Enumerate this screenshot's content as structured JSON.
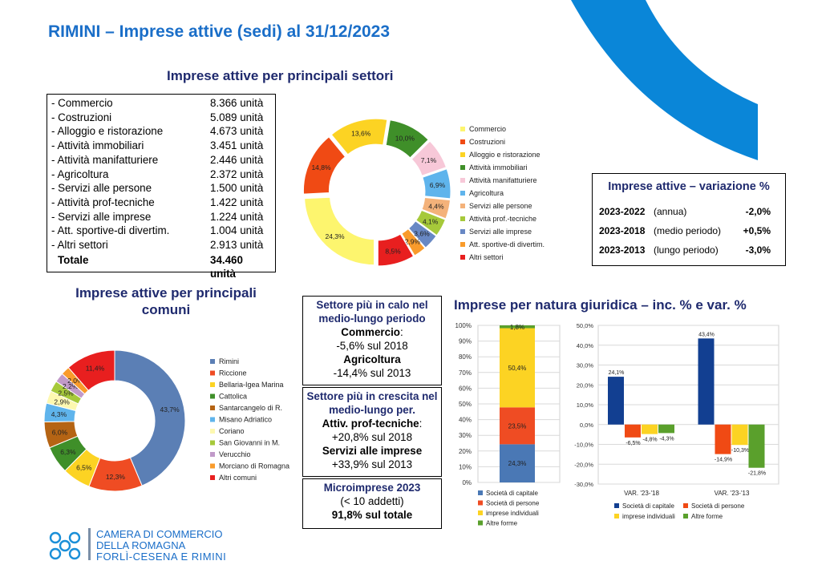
{
  "page_title": "RIMINI – Imprese attive (sedi) al 31/12/2023",
  "sectors": {
    "title": "Imprese attive per principali settori",
    "rows": [
      {
        "name": "- Commercio",
        "value": "8.366 unità"
      },
      {
        "name": "- Costruzioni",
        "value": "5.089 unità"
      },
      {
        "name": "- Alloggio e ristorazione",
        "value": "4.673 unità"
      },
      {
        "name": "- Attività immobiliari",
        "value": "3.451 unità"
      },
      {
        "name": "- Attività manifatturiere",
        "value": "2.446 unità"
      },
      {
        "name": "- Agricoltura",
        "value": "2.372 unità"
      },
      {
        "name": "- Servizi alle persone",
        "value": "1.500 unità"
      },
      {
        "name": "- Attività prof-tecniche",
        "value": "1.422 unità"
      },
      {
        "name": "- Servizi alle imprese",
        "value": "1.224 unità"
      },
      {
        "name": "- Att. sportive-di divertim.",
        "value": "1.004 unità"
      },
      {
        "name": "- Altri settori",
        "value": "2.913 unità"
      }
    ],
    "total_label": "Totale",
    "total_value": "34.460 unità"
  },
  "variation": {
    "title": "Imprese attive – variazione %",
    "rows": [
      {
        "period": "2023-2022",
        "desc": "(annua)",
        "value": "-2,0%"
      },
      {
        "period": "2023-2018",
        "desc": "(medio periodo)",
        "value": "+0,5%"
      },
      {
        "period": "2023-2013",
        "desc": "(lungo periodo)",
        "value": "-3,0%"
      }
    ]
  },
  "comuni_title": "Imprese attive per principali comuni",
  "box_calo": {
    "title": "Settore più in calo nel medio-lungo periodo",
    "s1_name": "Commercio",
    "s1_suffix": ":",
    "s1_value": "-5,6% sul 2018",
    "s2_name": "Agricoltura",
    "s2_value": "-14,4% sul 2013"
  },
  "box_crescita": {
    "title": "Settore più in crescita nel medio-lungo per.",
    "s1_name": "Attiv. prof-tecniche",
    "s1_suffix": ":",
    "s1_value": "+20,8% sul 2018",
    "s2_name": "Servizi alle imprese",
    "s2_value": "+33,9% sul 2013"
  },
  "box_micro": {
    "title": "Microimprese 2023",
    "sub": "(< 10 addetti)",
    "value": "91,8% sul totale"
  },
  "natura_title": "Imprese per natura giuridica – inc. % e var. %",
  "logo": {
    "line1": "CAMERA DI COMMERCIO",
    "line2": "DELLA ROMAGNA",
    "line3": "FORLÌ-CESENA E RIMINI"
  },
  "chart_data": [
    {
      "type": "pie",
      "variant": "donut",
      "labels": [
        "Commercio",
        "Costruzioni",
        "Alloggio e ristorazione",
        "Attività immobiliari",
        "Attività manifatturiere",
        "Agricoltura",
        "Servizi alle persone",
        "Attività prof.-tecniche",
        "Servizi alle imprese",
        "Att. sportive-di divertim.",
        "Altri settori"
      ],
      "values": [
        24.3,
        14.8,
        13.6,
        10.0,
        7.1,
        6.9,
        4.4,
        4.1,
        3.6,
        2.9,
        8.5
      ],
      "value_labels": [
        "24,3%",
        "14,8%",
        "13,6%",
        "10,0%",
        "7,1%",
        "6,9%",
        "4,4%",
        "4,1%",
        "3,6%",
        "2,9%",
        "8,5%"
      ],
      "colors": [
        "#fdf56e",
        "#f04a14",
        "#fcd323",
        "#3f8f29",
        "#f7c8d8",
        "#5fb4ec",
        "#f4b27a",
        "#a6c93a",
        "#6888c4",
        "#f99b2b",
        "#e81f1f"
      ],
      "legend_position": "right"
    },
    {
      "type": "pie",
      "variant": "donut",
      "labels": [
        "Rimini",
        "Riccione",
        "Bellaria-Igea Marina",
        "Cattolica",
        "Santarcangelo di R.",
        "Misano Adriatico",
        "Coriano",
        "San Giovanni in M.",
        "Verucchio",
        "Morciano di Romagna",
        "Altri comuni"
      ],
      "values": [
        43.7,
        12.3,
        6.5,
        6.3,
        6.0,
        4.3,
        2.9,
        2.5,
        2.2,
        2.0,
        11.4
      ],
      "value_labels": [
        "43,7%",
        "12,3%",
        "6,5%",
        "6,3%",
        "6,0%",
        "4,3%",
        "2,9%",
        "2,5%",
        "2,2%",
        "2,0%",
        "11,4%"
      ],
      "colors": [
        "#5b7fb5",
        "#ef4c23",
        "#fcd323",
        "#3f8f29",
        "#b56414",
        "#5fb4ec",
        "#fdf8b0",
        "#a6c93a",
        "#c19ac9",
        "#f99b2b",
        "#e81f1f"
      ],
      "legend_position": "right"
    },
    {
      "type": "bar",
      "variant": "stacked_100",
      "categories": [
        ""
      ],
      "series": [
        {
          "name": "Società di capitale",
          "values": [
            24.3
          ],
          "label": "24,3%",
          "color": "#4a78b5"
        },
        {
          "name": "Società di persone",
          "values": [
            23.5
          ],
          "label": "23,5%",
          "color": "#ef4c23"
        },
        {
          "name": "imprese individuali",
          "values": [
            50.4
          ],
          "label": "50,4%",
          "color": "#fcd323"
        },
        {
          "name": "Altre forme",
          "values": [
            1.8
          ],
          "label": "1,8%",
          "color": "#5aa02c"
        }
      ],
      "ylim": [
        0,
        100
      ],
      "yticks": [
        "0%",
        "10%",
        "20%",
        "30%",
        "40%",
        "50%",
        "60%",
        "70%",
        "80%",
        "90%",
        "100%"
      ],
      "grid": true,
      "legend_position": "bottom"
    },
    {
      "type": "bar",
      "categories": [
        "VAR. '23-'18",
        "VAR. '23-'13"
      ],
      "series": [
        {
          "name": "Società di capitale",
          "values": [
            24.1,
            43.4
          ],
          "labels": [
            "24,1%",
            "43,4%"
          ],
          "color": "#123f91"
        },
        {
          "name": "Società di persone",
          "values": [
            -6.5,
            -14.9
          ],
          "labels": [
            "-6,5%",
            "-14,9%"
          ],
          "color": "#f04a14"
        },
        {
          "name": "imprese individuali",
          "values": [
            -4.8,
            -10.3
          ],
          "labels": [
            "-4,8%",
            "-10,3%"
          ],
          "color": "#fcd323"
        },
        {
          "name": "Altre forme",
          "values": [
            -4.3,
            -21.8
          ],
          "labels": [
            "-4,3%",
            "-21,8%"
          ],
          "color": "#5aa02c"
        }
      ],
      "ylim": [
        -30,
        50
      ],
      "yticks": [
        "-30,0%",
        "-20,0%",
        "-10,0%",
        "0,0%",
        "10,0%",
        "20,0%",
        "30,0%",
        "40,0%",
        "50,0%"
      ],
      "grid": true,
      "legend_position": "bottom"
    }
  ]
}
